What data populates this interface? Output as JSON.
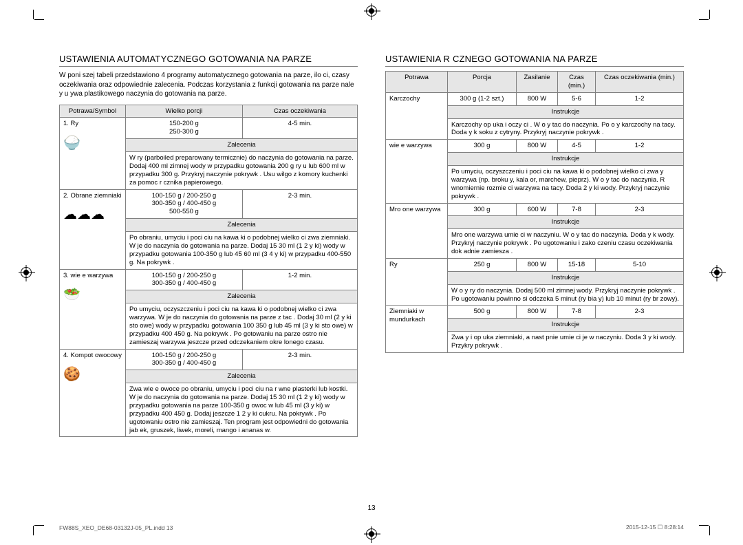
{
  "page_number": "13",
  "footer_left": "FW88S_XEO_DE68-03132J-05_PL.indd   13",
  "footer_right": "2015-12-15   ☐ 8:28:14",
  "left": {
    "heading": "USTAWIENIA AUTOMATYCZNEGO GOTOWANIA NA PARZE",
    "intro": "W poni szej tabeli przedstawiono 4 programy automatycznego gotowania na parze, ilo ci, czasy oczekiwania oraz odpowiednie zalecenia. Podczas korzystania z funkcji gotowania na parze nale y u ywa plastikowego naczynia do gotowania na parze.",
    "hdr_symbol": "Potrawa/Symbol",
    "hdr_portion": "Wielko   porcji",
    "hdr_wait": "Czas oczekiwania",
    "zal_label": "Zalecenia",
    "rows": [
      {
        "name": "1. Ry",
        "icon": "🍚",
        "portion": "150-200 g\n250-300 g",
        "wait": "4-5 min.",
        "zal": "W   ry (parboiled  preparowany termicznie) do naczynia do gotowania na parze. Dodaj 400 ml zimnej wody w przypadku gotowania 200 g ry u lub 600 ml w przypadku 300 g. Przykryj naczynie pokrywk . Usu   wilgo  z komory kuchenki za pomoc  r cznika papierowego."
      },
      {
        "name": "2. Obrane ziemniaki",
        "icon": "☁☁☁",
        "portion": "100-150 g / 200-250 g\n300-350 g / 400-450 g\n500-550 g",
        "wait": "2-3 min.",
        "zal": "Po obraniu, umyciu i poci ciu na kawa ki o podobnej wielko ci zwa ziemniaki. W   je do naczynia do gotowania na parze. Dodaj 15 30 ml (1 2  y ki) wody w przypadku gotowania 100-350 g lub 45 60 ml (3 4  y ki) w przypadku 400-550 g. Na    pokrywk ."
      },
      {
        "name": "3.  wie e warzywa",
        "icon": "🥗",
        "portion": "100-150 g / 200-250 g\n300-350 g / 400-450 g",
        "wait": "1-2 min.",
        "zal": "Po umyciu, oczyszczeniu i poci ciu na kawa ki o podobnej wielko ci zwa warzywa. W   je do naczynia do gotowania na parze z tac . Dodaj 30 ml (2  y ki sto owe) wody w przypadku gotowania 100 350 g lub 45 ml (3  y ki sto owe) w przypadku 400 450 g. Na    pokrywk . Po gotowaniu na parze ostro nie zamieszaj warzywa jeszcze przed odczekaniem okre lonego czasu."
      },
      {
        "name": "4. Kompot owocowy",
        "icon": "🍪",
        "portion": "100-150 g / 200-250 g\n300-350 g / 400-450 g",
        "wait": "2-3 min.",
        "zal": "Zwa    wie e owoce po obraniu, umyciu i poci ciu na r wne plasterki lub kostki. W   je do naczynia do gotowania na parze. Dodaj 15 30 ml (1 2  y ki) wody w przypadku gotowania na parze 100-350 g owoc w lub 45 ml (3  y ki) w przypadku 400 450 g. Dodaj jeszcze 1 2  y ki cukru. Na    pokrywk . Po ugotowaniu ostro nie zamieszaj. Ten program jest odpowiedni do gotowania jab ek, gruszek,  liwek, moreli, mango i ananas w."
      }
    ]
  },
  "right": {
    "heading": "USTAWIENIA R  CZNEGO GOTOWANIA NA PARZE",
    "hdr_food": "Potrawa",
    "hdr_portion": "Porcja",
    "hdr_power": "Zasilanie",
    "hdr_time": "Czas (min.)",
    "hdr_wait": "Czas oczekiwania (min.)",
    "instr_label": "Instrukcje",
    "rows": [
      {
        "food": "Karczochy",
        "portion": "300 g (1-2 szt.)",
        "power": "800 W",
        "time": "5-6",
        "wait": "1-2",
        "instr": "Karczochy op uka  i oczy ci . W o y  tac  do naczynia. Po o y  karczochy na tacy. Doda   y k  soku z cytryny. Przykryj naczynie pokrywk ."
      },
      {
        "food": " wie e warzywa",
        "portion": "300 g",
        "power": "800 W",
        "time": "4-5",
        "wait": "1-2",
        "instr": "Po umyciu, oczyszczeniu i poci ciu na kawa ki o podobnej wielko ci zwa y  warzywa (np. broku y, kala or, marchew, pieprz). W o y  tac  do naczynia. R wnomiernie rozmie ci  warzywa na tacy. Doda  2  y ki wody. Przykryj naczynie pokrywk ."
      },
      {
        "food": "Mro one warzywa",
        "portion": "300 g",
        "power": "600 W",
        "time": "7-8",
        "wait": "2-3",
        "instr": "Mro one warzywa umie ci  w naczyniu. W o y  tac  do naczynia. Doda   y k  wody. Przykryj naczynie pokrywk . Po ugotowaniu i zako czeniu czasu oczekiwania dok adnie zamiesza ."
      },
      {
        "food": "Ry",
        "portion": "250 g",
        "power": "800 W",
        "time": "15-18",
        "wait": "5-10",
        "instr": "W o y  ry  do naczynia. Dodaj 500 ml zimnej wody. Przykryj naczynie pokrywk . Po ugotowaniu powinno si  odczeka  5 minut (ry  bia y) lub 10 minut (ry  br zowy)."
      },
      {
        "food": "Ziemniaki w mundurkach",
        "portion": "500 g",
        "power": "800 W",
        "time": "7-8",
        "wait": "2-3",
        "instr": "Zwa y  i op uka  ziemniaki, a nast pnie umie ci  je w naczyniu. Doda  3  y ki wody. Przykry  pokrywk ."
      }
    ]
  }
}
